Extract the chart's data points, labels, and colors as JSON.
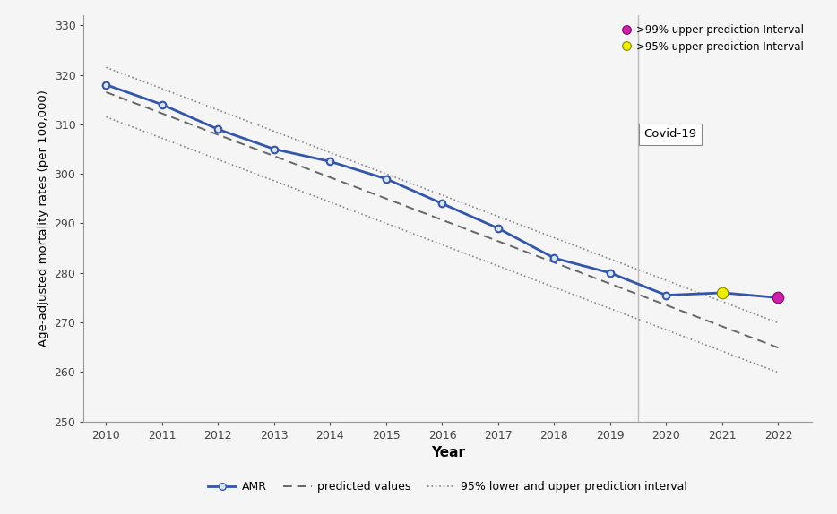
{
  "years": [
    2010,
    2011,
    2012,
    2013,
    2014,
    2015,
    2016,
    2017,
    2018,
    2019,
    2020,
    2021,
    2022
  ],
  "amr": [
    318.0,
    314.0,
    309.0,
    305.0,
    302.5,
    299.0,
    294.0,
    289.0,
    283.0,
    280.0,
    275.5,
    276.0,
    275.0
  ],
  "predicted": [
    316.5,
    312.2,
    307.9,
    303.6,
    299.3,
    295.0,
    290.7,
    286.4,
    282.1,
    277.8,
    273.5,
    269.2,
    264.9
  ],
  "upper_95": [
    321.5,
    317.2,
    312.9,
    308.6,
    304.3,
    300.0,
    295.7,
    291.4,
    287.1,
    282.8,
    278.5,
    274.2,
    269.9
  ],
  "lower_95": [
    311.5,
    307.2,
    302.9,
    298.6,
    294.3,
    290.0,
    285.7,
    281.4,
    277.1,
    272.8,
    268.5,
    264.2,
    259.9
  ],
  "amr_color": "#3355aa",
  "predicted_color": "#666666",
  "pi_color": "#888888",
  "marker_facecolor": "#dde4f0",
  "covid_line_x": 2019.5,
  "covid_label": "Covid-19",
  "special_99_year": 2022,
  "special_99_value": 275.0,
  "special_99_color": "#cc22aa",
  "special_95_year": 2021,
  "special_95_value": 276.0,
  "special_95_color": "#eeee00",
  "ylim": [
    250,
    332
  ],
  "xlim": [
    2009.6,
    2022.6
  ],
  "yticks": [
    250,
    260,
    270,
    280,
    290,
    300,
    310,
    320,
    330
  ],
  "xticks": [
    2010,
    2011,
    2012,
    2013,
    2014,
    2015,
    2016,
    2017,
    2018,
    2019,
    2020,
    2021,
    2022
  ],
  "xlabel": "Year",
  "ylabel": "Age-adjusted mortality rates (per 100,000)",
  "legend_amr": "AMR",
  "legend_predicted": "predicted values",
  "legend_pi": "95% lower and upper prediction interval",
  "legend_99": ">99% upper prediction Interval",
  "legend_95": ">95% upper prediction Interval",
  "background_color": "#f5f5f5"
}
